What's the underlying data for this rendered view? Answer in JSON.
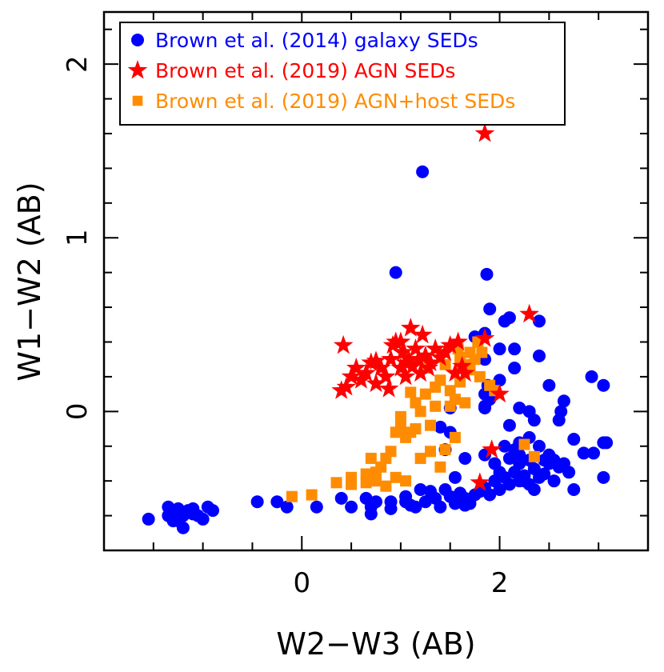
{
  "chart_data": {
    "type": "scatter",
    "xlabel": "W2−W3 (AB)",
    "ylabel": "W1−W2 (AB)",
    "xlim": [
      -2.0,
      3.5
    ],
    "ylim": [
      -0.8,
      2.3
    ],
    "x_major_ticks": [
      0,
      2
    ],
    "y_major_ticks": [
      0,
      1,
      2
    ],
    "x_tick_labels": [
      "0",
      "2"
    ],
    "y_tick_labels": [
      "0",
      "1",
      "2"
    ],
    "x_minor_step": 0.5,
    "y_minor_step": 0.2,
    "grid": false,
    "legend_position": "top-left",
    "series": [
      {
        "name": "Brown et al. (2014) galaxy SEDs",
        "marker": "circle",
        "color": "#0000ff",
        "points": [
          [
            -1.55,
            -0.62
          ],
          [
            -1.35,
            -0.6
          ],
          [
            -1.3,
            -0.58
          ],
          [
            -1.35,
            -0.55
          ],
          [
            -1.25,
            -0.56
          ],
          [
            -1.2,
            -0.6
          ],
          [
            -1.15,
            -0.57
          ],
          [
            -1.1,
            -0.59
          ],
          [
            -1.25,
            -0.63
          ],
          [
            -1.2,
            -0.67
          ],
          [
            -1.05,
            -0.6
          ],
          [
            -1.3,
            -0.63
          ],
          [
            -1.0,
            -0.62
          ],
          [
            -1.1,
            -0.56
          ],
          [
            -0.95,
            -0.55
          ],
          [
            -0.9,
            -0.57
          ],
          [
            -0.45,
            -0.52
          ],
          [
            -0.25,
            -0.52
          ],
          [
            -0.15,
            -0.55
          ],
          [
            0.15,
            -0.55
          ],
          [
            0.4,
            -0.5
          ],
          [
            0.5,
            -0.55
          ],
          [
            0.65,
            -0.5
          ],
          [
            0.7,
            -0.55
          ],
          [
            0.7,
            -0.59
          ],
          [
            0.75,
            -0.52
          ],
          [
            0.9,
            -0.52
          ],
          [
            1.05,
            -0.49
          ],
          [
            1.1,
            -0.54
          ],
          [
            1.15,
            -0.55
          ],
          [
            1.2,
            -0.45
          ],
          [
            1.3,
            -0.46
          ],
          [
            1.35,
            -0.5
          ],
          [
            1.4,
            -0.55
          ],
          [
            1.45,
            -0.45
          ],
          [
            1.5,
            -0.49
          ],
          [
            1.55,
            -0.53
          ],
          [
            1.6,
            -0.47
          ],
          [
            1.65,
            -0.5
          ],
          [
            1.7,
            -0.53
          ],
          [
            1.75,
            -0.48
          ],
          [
            1.8,
            -0.46
          ],
          [
            1.85,
            -0.44
          ],
          [
            1.9,
            -0.48
          ],
          [
            1.95,
            -0.4
          ],
          [
            2.0,
            -0.45
          ],
          [
            2.05,
            -0.38
          ],
          [
            2.1,
            -0.42
          ],
          [
            2.15,
            -0.35
          ],
          [
            2.2,
            -0.4
          ],
          [
            2.25,
            -0.37
          ],
          [
            2.3,
            -0.42
          ],
          [
            2.35,
            -0.33
          ],
          [
            2.4,
            -0.38
          ],
          [
            2.45,
            -0.36
          ],
          [
            2.5,
            -0.3
          ],
          [
            2.55,
            -0.28
          ],
          [
            2.6,
            -0.32
          ],
          [
            2.65,
            -0.3
          ],
          [
            2.7,
            -0.35
          ],
          [
            2.75,
            -0.45
          ],
          [
            2.85,
            -0.24
          ],
          [
            2.95,
            -0.24
          ],
          [
            3.05,
            -0.38
          ],
          [
            3.05,
            -0.18
          ],
          [
            3.08,
            -0.18
          ],
          [
            2.45,
            -0.28
          ],
          [
            2.3,
            -0.28
          ],
          [
            2.2,
            -0.25
          ],
          [
            2.1,
            -0.27
          ],
          [
            2.05,
            -0.2
          ],
          [
            2.2,
            -0.3
          ],
          [
            2.0,
            -0.35
          ],
          [
            1.95,
            -0.3
          ],
          [
            2.3,
            -0.15
          ],
          [
            2.4,
            -0.2
          ],
          [
            2.5,
            -0.25
          ],
          [
            2.6,
            -0.05
          ],
          [
            2.62,
            0.0
          ],
          [
            2.65,
            0.06
          ],
          [
            2.75,
            -0.16
          ],
          [
            2.5,
            0.15
          ],
          [
            2.2,
            0.02
          ],
          [
            2.3,
            0.0
          ],
          [
            2.35,
            -0.05
          ],
          [
            2.1,
            -0.08
          ],
          [
            2.2,
            -0.18
          ],
          [
            2.15,
            -0.22
          ],
          [
            1.85,
            -0.25
          ],
          [
            1.65,
            -0.27
          ],
          [
            1.55,
            -0.38
          ],
          [
            1.45,
            -0.22
          ],
          [
            1.5,
            -0.12
          ],
          [
            1.4,
            -0.09
          ],
          [
            1.5,
            0.02
          ],
          [
            1.85,
            0.02
          ],
          [
            1.85,
            0.1
          ],
          [
            1.88,
            0.15
          ],
          [
            1.85,
            0.3
          ],
          [
            2.0,
            0.18
          ],
          [
            2.15,
            0.25
          ],
          [
            2.93,
            0.2
          ],
          [
            3.05,
            0.15
          ],
          [
            2.0,
            0.36
          ],
          [
            2.15,
            0.36
          ],
          [
            2.4,
            0.32
          ],
          [
            2.05,
            0.52
          ],
          [
            2.1,
            0.54
          ],
          [
            2.4,
            0.52
          ],
          [
            1.9,
            0.59
          ],
          [
            1.75,
            0.43
          ],
          [
            1.85,
            0.45
          ],
          [
            0.95,
            0.8
          ],
          [
            1.87,
            0.79
          ],
          [
            1.22,
            1.38
          ],
          [
            1.85,
            0.03
          ],
          [
            1.9,
            0.07
          ],
          [
            2.25,
            -0.4
          ],
          [
            2.35,
            -0.45
          ],
          [
            2.55,
            -0.4
          ],
          [
            1.65,
            -0.54
          ],
          [
            1.25,
            -0.52
          ],
          [
            1.05,
            -0.52
          ],
          [
            0.9,
            -0.56
          ]
        ]
      },
      {
        "name": "Brown et al. (2019) AGN SEDs",
        "marker": "star",
        "color": "#ff0000",
        "points": [
          [
            1.85,
            1.6
          ],
          [
            2.3,
            0.56
          ],
          [
            0.42,
            0.38
          ],
          [
            0.4,
            0.12
          ],
          [
            0.45,
            0.14
          ],
          [
            0.5,
            0.2
          ],
          [
            0.55,
            0.25
          ],
          [
            0.6,
            0.18
          ],
          [
            0.65,
            0.22
          ],
          [
            0.7,
            0.28
          ],
          [
            0.75,
            0.16
          ],
          [
            0.8,
            0.25
          ],
          [
            0.85,
            0.2
          ],
          [
            0.88,
            0.13
          ],
          [
            0.9,
            0.3
          ],
          [
            0.92,
            0.38
          ],
          [
            0.95,
            0.4
          ],
          [
            1.0,
            0.25
          ],
          [
            1.02,
            0.34
          ],
          [
            1.05,
            0.2
          ],
          [
            1.08,
            0.3
          ],
          [
            1.1,
            0.48
          ],
          [
            1.12,
            0.26
          ],
          [
            1.15,
            0.36
          ],
          [
            1.18,
            0.3
          ],
          [
            1.2,
            0.22
          ],
          [
            1.22,
            0.44
          ],
          [
            1.25,
            0.32
          ],
          [
            1.3,
            0.28
          ],
          [
            1.35,
            0.36
          ],
          [
            1.4,
            0.31
          ],
          [
            1.45,
            0.34
          ],
          [
            1.5,
            0.38
          ],
          [
            1.55,
            0.22
          ],
          [
            1.58,
            0.4
          ],
          [
            1.62,
            0.26
          ],
          [
            1.65,
            0.22
          ],
          [
            1.85,
            0.42
          ],
          [
            2.0,
            0.1
          ],
          [
            1.92,
            -0.22
          ],
          [
            1.8,
            -0.41
          ],
          [
            1.0,
            0.4
          ],
          [
            0.75,
            0.29
          ],
          [
            1.28,
            0.25
          ],
          [
            1.05,
            0.28
          ]
        ]
      },
      {
        "name": "Brown et al. (2019) AGN+host SEDs",
        "marker": "square",
        "color": "#ff8c00",
        "points": [
          [
            -0.1,
            -0.49
          ],
          [
            0.1,
            -0.48
          ],
          [
            0.35,
            -0.41
          ],
          [
            0.5,
            -0.42
          ],
          [
            0.5,
            -0.38
          ],
          [
            0.65,
            -0.41
          ],
          [
            0.65,
            -0.36
          ],
          [
            0.7,
            -0.27
          ],
          [
            0.75,
            -0.4
          ],
          [
            0.75,
            -0.35
          ],
          [
            0.8,
            -0.32
          ],
          [
            0.85,
            -0.43
          ],
          [
            0.85,
            -0.27
          ],
          [
            0.9,
            -0.23
          ],
          [
            0.95,
            -0.38
          ],
          [
            0.95,
            -0.12
          ],
          [
            1.0,
            -0.09
          ],
          [
            1.0,
            -0.03
          ],
          [
            1.05,
            -0.4
          ],
          [
            1.05,
            -0.15
          ],
          [
            1.1,
            -0.12
          ],
          [
            1.1,
            0.11
          ],
          [
            1.15,
            -0.1
          ],
          [
            1.15,
            0.05
          ],
          [
            1.2,
            -0.27
          ],
          [
            1.2,
            0.0
          ],
          [
            1.25,
            0.1
          ],
          [
            1.25,
            0.25
          ],
          [
            1.3,
            -0.23
          ],
          [
            1.3,
            -0.08
          ],
          [
            1.35,
            0.03
          ],
          [
            1.35,
            0.14
          ],
          [
            1.4,
            -0.32
          ],
          [
            1.4,
            0.18
          ],
          [
            1.45,
            -0.22
          ],
          [
            1.45,
            0.27
          ],
          [
            1.5,
            0.03
          ],
          [
            1.5,
            0.12
          ],
          [
            1.55,
            -0.15
          ],
          [
            1.55,
            0.07
          ],
          [
            1.6,
            0.17
          ],
          [
            1.6,
            0.31
          ],
          [
            1.65,
            0.05
          ],
          [
            1.65,
            0.27
          ],
          [
            1.7,
            0.24
          ],
          [
            1.7,
            0.34
          ],
          [
            1.75,
            0.3
          ],
          [
            1.78,
            0.4
          ],
          [
            1.8,
            0.2
          ],
          [
            1.82,
            0.34
          ],
          [
            1.9,
            0.15
          ],
          [
            1.95,
            0.12
          ],
          [
            2.25,
            -0.19
          ],
          [
            2.35,
            -0.26
          ],
          [
            1.62,
            0.25
          ],
          [
            1.58,
            0.36
          ]
        ]
      }
    ]
  }
}
